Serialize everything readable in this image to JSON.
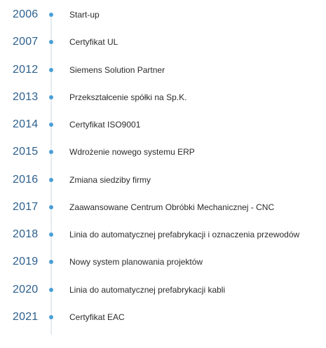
{
  "timeline": {
    "items": [
      {
        "year": "2006",
        "label": "Start-up"
      },
      {
        "year": "2007",
        "label": "Certyfikat UL"
      },
      {
        "year": "2012",
        "label": "Siemens Solution Partner"
      },
      {
        "year": "2013",
        "label": "Przekształcenie spółki na Sp.K."
      },
      {
        "year": "2014",
        "label": "Certyfikat ISO9001"
      },
      {
        "year": "2015",
        "label": "Wdrożenie nowego systemu ERP"
      },
      {
        "year": "2016",
        "label": "Zmiana siedziby firmy"
      },
      {
        "year": "2017",
        "label": "Zaawansowane Centrum Obróbki Mechanicznej - CNC"
      },
      {
        "year": "2018",
        "label": "Linia do automatycznej prefabrykacji i oznaczenia przewodów"
      },
      {
        "year": "2019",
        "label": "Nowy system planowania projektów"
      },
      {
        "year": "2020",
        "label": "Linia do automatycznej prefabrykacji kabli"
      },
      {
        "year": "2021",
        "label": "Certyfikat EAC"
      }
    ]
  },
  "colors": {
    "year": "#2d5f8c",
    "dot": "#4a9fd6",
    "line": "#e6ecf1",
    "text": "#2b2b2b"
  }
}
